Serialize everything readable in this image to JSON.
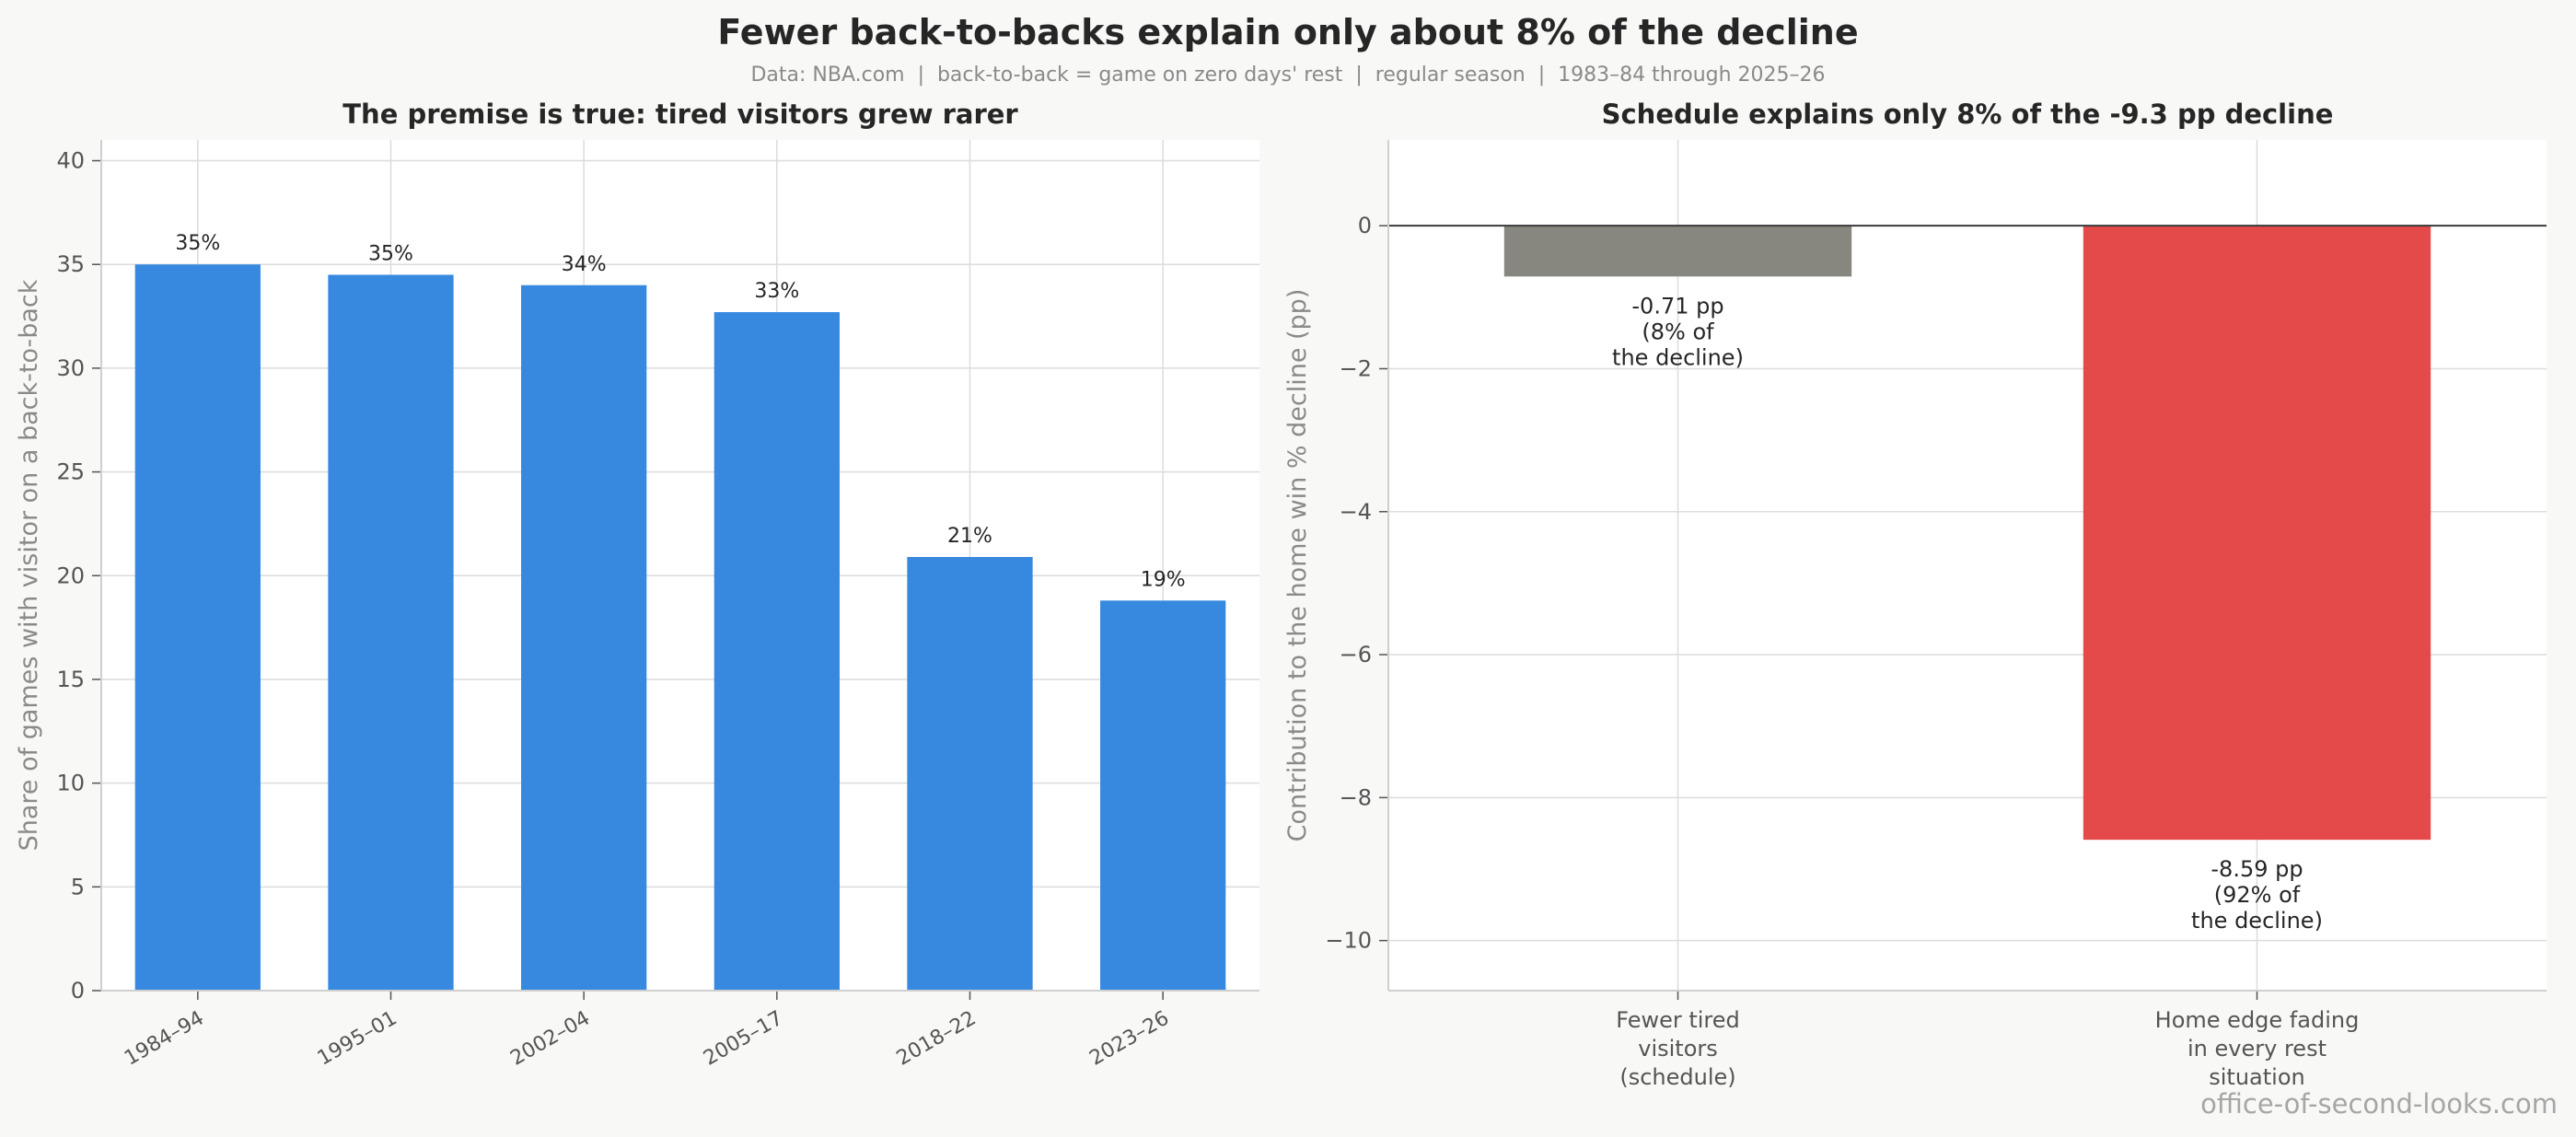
{
  "title": "Fewer back-to-backs explain only about 8% of the decline",
  "subtitle": "Data: NBA.com  |  back-to-back = game on zero days' rest  |  regular season  |  1983–84 through 2025–26",
  "credit": "office-of-second-looks.com",
  "colors": {
    "bar_blue": "#3789e0",
    "bar_gray": "#87877f",
    "bar_red": "#e44a4a",
    "grid": "#dcdcdc",
    "zero_line": "#3a3a3a"
  },
  "chart_data": [
    {
      "type": "bar",
      "title": "The premise is true: tired visitors grew rarer",
      "xlabel": "",
      "ylabel": "Share of games with visitor on a back-to-back",
      "categories": [
        "1984–94",
        "1995–01",
        "2002–04",
        "2005–17",
        "2018–22",
        "2023–26"
      ],
      "values": [
        35.0,
        34.5,
        34.0,
        32.7,
        20.9,
        18.8
      ],
      "data_labels": [
        "35%",
        "35%",
        "34%",
        "33%",
        "21%",
        "19%"
      ],
      "ylim": [
        0,
        41
      ],
      "yticks": [
        0,
        5,
        10,
        15,
        20,
        25,
        30,
        35,
        40
      ],
      "grid": true
    },
    {
      "type": "bar",
      "title": "Schedule explains only 8% of the -9.3 pp decline",
      "xlabel": "",
      "ylabel": "Contribution to the home win % decline (pp)",
      "categories": [
        [
          "Fewer tired",
          "visitors",
          "(schedule)"
        ],
        [
          "Home edge fading",
          "in every rest",
          "situation"
        ]
      ],
      "values": [
        -0.71,
        -8.59
      ],
      "data_labels": [
        [
          "-0.71 pp",
          "(8% of",
          "the decline)"
        ],
        [
          "-8.59 pp",
          "(92% of",
          "the decline)"
        ]
      ],
      "ylim": [
        -10.7,
        1.2
      ],
      "yticks": [
        0,
        -2,
        -4,
        -6,
        -8,
        -10
      ],
      "ytick_labels": [
        "0",
        "−2",
        "−4",
        "−6",
        "−8",
        "−10"
      ],
      "grid": true
    }
  ]
}
